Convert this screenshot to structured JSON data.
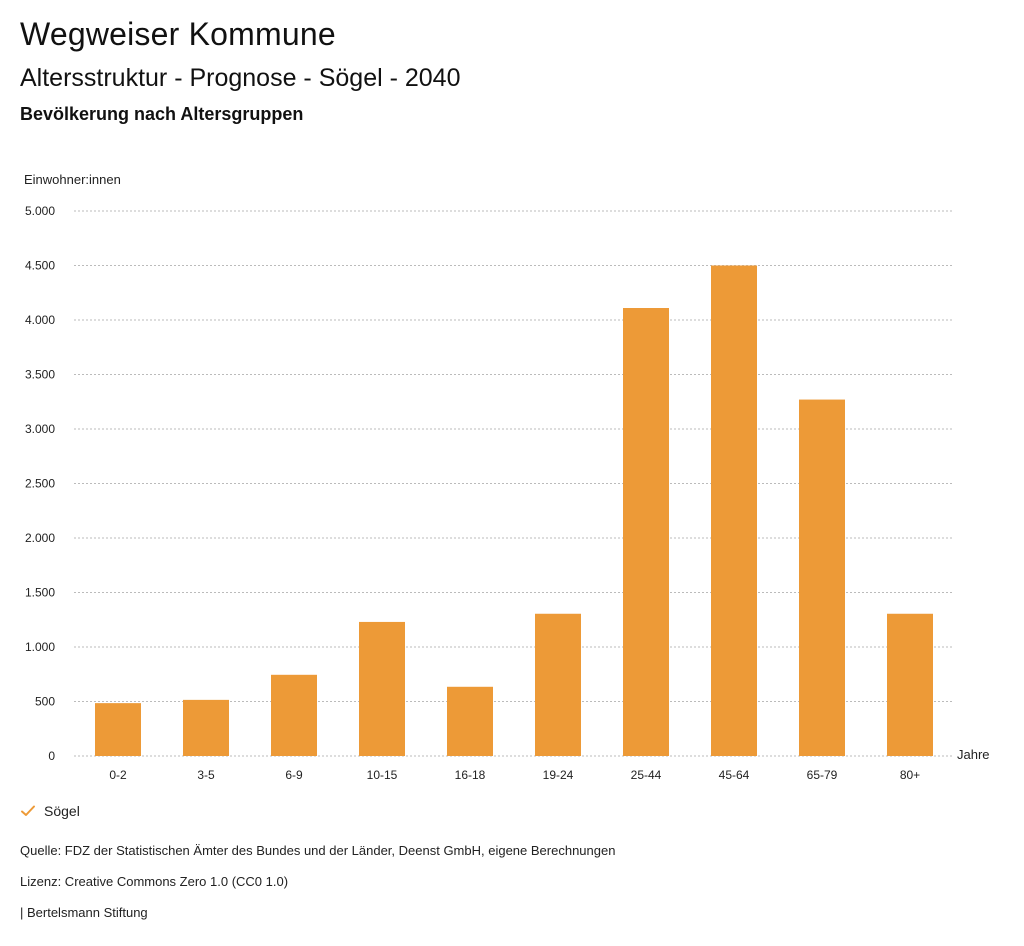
{
  "header": {
    "title": "Wegweiser Kommune",
    "subtitle": "Altersstruktur - Prognose - Sögel - 2040",
    "heading": "Bevölkerung nach Altersgruppen"
  },
  "chart_data": {
    "type": "bar",
    "title": "Bevölkerung nach Altersgruppen",
    "ylabel": "Einwohner:innen",
    "xlabel": "Jahre",
    "categories": [
      "0-2",
      "3-5",
      "6-9",
      "10-15",
      "16-18",
      "19-24",
      "25-44",
      "45-64",
      "65-79",
      "80+"
    ],
    "series": [
      {
        "name": "Sögel",
        "values": [
          485,
          515,
          745,
          1230,
          635,
          1305,
          4110,
          4500,
          3270,
          1305
        ]
      }
    ],
    "ylim": [
      0,
      5000
    ],
    "yticks": [
      0,
      500,
      1000,
      1500,
      2000,
      2500,
      3000,
      3500,
      4000,
      4500,
      5000
    ],
    "ytick_labels": [
      "0",
      "500",
      "1.000",
      "1.500",
      "2.000",
      "2.500",
      "3.000",
      "3.500",
      "4.000",
      "4.500",
      "5.000"
    ],
    "grid": true,
    "bar_color": "#ED9A37",
    "grid_color": "#BBBBBB"
  },
  "legend": {
    "label": "Sögel",
    "color": "#ED9A37"
  },
  "footer": {
    "source": "Quelle: FDZ der Statistischen Ämter des Bundes und der Länder, Deenst GmbH, eigene Berechnungen",
    "license": "Lizenz: Creative Commons Zero 1.0 (CC0 1.0)",
    "publisher": "| Bertelsmann Stiftung"
  }
}
